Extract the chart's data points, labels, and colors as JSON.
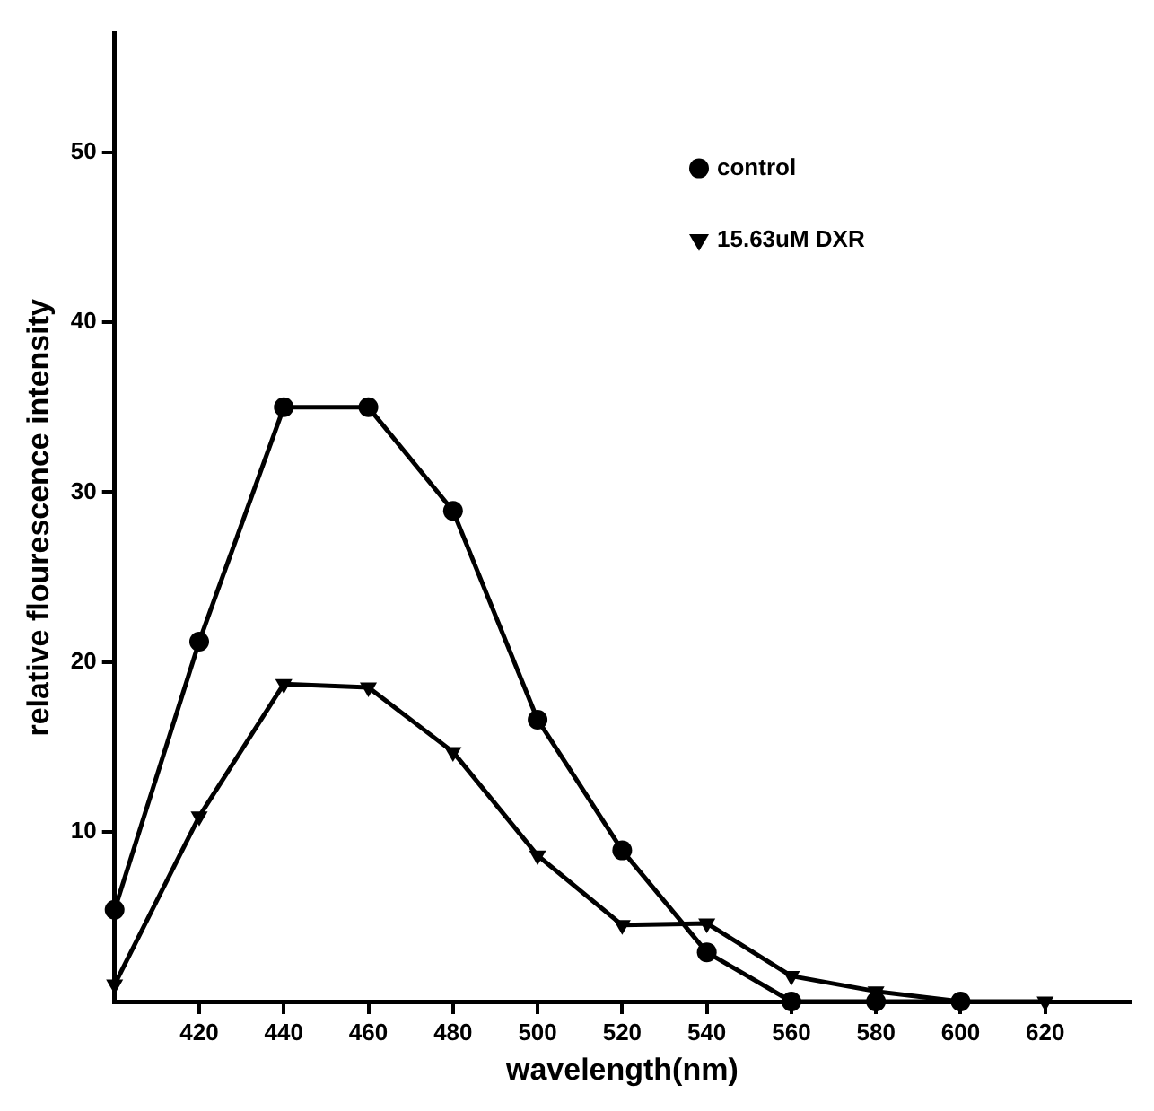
{
  "chart_data": {
    "type": "line",
    "xlabel": "wavelength(nm)",
    "ylabel": "relative flourescence intensity",
    "x": [
      400,
      420,
      440,
      460,
      480,
      500,
      520,
      540,
      560,
      580,
      600
    ],
    "series": [
      {
        "name": "control",
        "color": "#000000",
        "marker": "circle",
        "values": [
          5.4,
          21.2,
          35,
          35,
          28.9,
          16.6,
          8.9,
          2.9,
          0,
          0,
          0
        ]
      },
      {
        "name": "15.63uM DXR",
        "color": "#000000",
        "marker": "triangle",
        "x": [
          400,
          420,
          440,
          460,
          480,
          500,
          520,
          540,
          560,
          580,
          600,
          620
        ],
        "values": [
          1,
          10.9,
          18.7,
          18.5,
          14.7,
          8.6,
          4.5,
          4.6,
          1.5,
          0.6,
          0,
          0
        ]
      }
    ],
    "xlim": [
      400,
      640
    ],
    "ylim": [
      0,
      57
    ],
    "xticks": [
      420,
      440,
      460,
      480,
      500,
      520,
      540,
      560,
      580,
      600,
      620
    ],
    "yticks": [
      10,
      20,
      30,
      40,
      50
    ],
    "grid": false,
    "legend": "top right",
    "line_style": "solid"
  }
}
